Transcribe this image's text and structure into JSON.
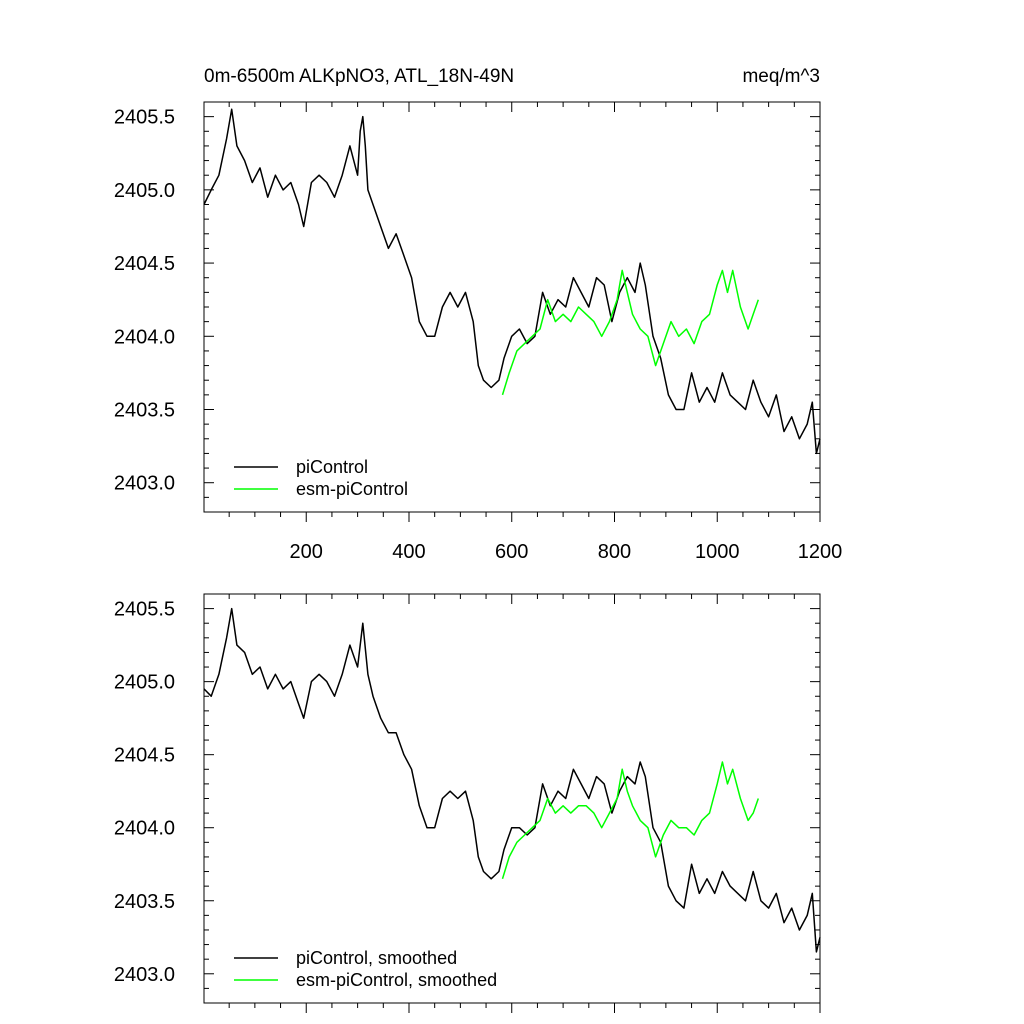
{
  "chart_data": [
    {
      "type": "line",
      "title": "0m-6500m ALKpNO3, ATL_18N-49N",
      "units": "meq/m^3",
      "xlim": [
        1,
        1200
      ],
      "ylim": [
        2402.8,
        2405.6
      ],
      "x_ticks": [
        200,
        400,
        600,
        800,
        1000,
        1200
      ],
      "y_ticks": [
        2403.0,
        2403.5,
        2404.0,
        2404.5,
        2405.0,
        2405.5
      ],
      "grid": false,
      "legend": "bottom-left",
      "series": [
        {
          "name": "piControl",
          "color": "#000000",
          "x": [
            1,
            15,
            30,
            45,
            55,
            65,
            80,
            95,
            110,
            125,
            140,
            155,
            170,
            185,
            195,
            210,
            225,
            240,
            255,
            270,
            285,
            300,
            305,
            310,
            315,
            320,
            330,
            345,
            360,
            375,
            390,
            405,
            420,
            435,
            450,
            465,
            480,
            495,
            510,
            525,
            535,
            545,
            560,
            575,
            585,
            600,
            615,
            630,
            645,
            660,
            675,
            690,
            705,
            720,
            735,
            750,
            765,
            780,
            795,
            810,
            825,
            840,
            850,
            860,
            875,
            890,
            905,
            920,
            935,
            950,
            965,
            980,
            995,
            1010,
            1025,
            1040,
            1055,
            1070,
            1085,
            1100,
            1115,
            1130,
            1145,
            1160,
            1175,
            1185,
            1193,
            1200
          ],
          "y": [
            2404.9,
            2405.0,
            2405.1,
            2405.35,
            2405.55,
            2405.3,
            2405.2,
            2405.05,
            2405.15,
            2404.95,
            2405.1,
            2405.0,
            2405.05,
            2404.9,
            2404.75,
            2405.05,
            2405.1,
            2405.05,
            2404.95,
            2405.1,
            2405.3,
            2405.1,
            2405.4,
            2405.5,
            2405.3,
            2405.0,
            2404.9,
            2404.75,
            2404.6,
            2404.7,
            2404.55,
            2404.4,
            2404.1,
            2404.0,
            2404.0,
            2404.2,
            2404.3,
            2404.2,
            2404.3,
            2404.1,
            2403.8,
            2403.7,
            2403.65,
            2403.7,
            2403.85,
            2404.0,
            2404.05,
            2403.95,
            2404.0,
            2404.3,
            2404.15,
            2404.25,
            2404.2,
            2404.4,
            2404.3,
            2404.2,
            2404.4,
            2404.35,
            2404.1,
            2404.3,
            2404.4,
            2404.3,
            2404.5,
            2404.35,
            2404.0,
            2403.85,
            2403.6,
            2403.5,
            2403.5,
            2403.75,
            2403.55,
            2403.65,
            2403.55,
            2403.75,
            2403.6,
            2403.55,
            2403.5,
            2403.7,
            2403.55,
            2403.45,
            2403.6,
            2403.35,
            2403.45,
            2403.3,
            2403.4,
            2403.55,
            2403.2,
            2403.3
          ]
        },
        {
          "name": "esm-piControl",
          "color": "#00ff00",
          "x": [
            582,
            595,
            610,
            625,
            640,
            655,
            670,
            685,
            700,
            715,
            730,
            745,
            760,
            775,
            790,
            805,
            815,
            825,
            835,
            850,
            865,
            880,
            895,
            910,
            925,
            940,
            955,
            970,
            985,
            1000,
            1010,
            1020,
            1030,
            1045,
            1060,
            1070,
            1080
          ],
          "y": [
            2403.6,
            2403.75,
            2403.9,
            2403.95,
            2404.0,
            2404.05,
            2404.25,
            2404.1,
            2404.15,
            2404.1,
            2404.2,
            2404.15,
            2404.1,
            2404.0,
            2404.1,
            2404.25,
            2404.45,
            2404.3,
            2404.15,
            2404.05,
            2404.0,
            2403.8,
            2403.95,
            2404.1,
            2404.0,
            2404.05,
            2403.95,
            2404.1,
            2404.15,
            2404.35,
            2404.45,
            2404.3,
            2404.45,
            2404.2,
            2404.05,
            2404.15,
            2404.25
          ]
        }
      ]
    },
    {
      "type": "line",
      "title": "",
      "xlim": [
        1,
        1200
      ],
      "ylim": [
        2402.8,
        2405.6
      ],
      "y_ticks": [
        2403.0,
        2403.5,
        2404.0,
        2404.5,
        2405.0,
        2405.5
      ],
      "grid": false,
      "legend": "bottom-left",
      "series": [
        {
          "name": "piControl, smoothed",
          "color": "#000000",
          "x": [
            1,
            15,
            30,
            45,
            55,
            65,
            80,
            95,
            110,
            125,
            140,
            155,
            170,
            185,
            195,
            210,
            225,
            240,
            255,
            270,
            285,
            300,
            310,
            320,
            330,
            345,
            360,
            375,
            390,
            405,
            420,
            435,
            450,
            465,
            480,
            495,
            510,
            525,
            535,
            545,
            560,
            575,
            585,
            600,
            615,
            630,
            645,
            660,
            675,
            690,
            705,
            720,
            735,
            750,
            765,
            780,
            795,
            810,
            825,
            840,
            850,
            860,
            875,
            890,
            905,
            920,
            935,
            950,
            965,
            980,
            995,
            1010,
            1025,
            1040,
            1055,
            1070,
            1085,
            1100,
            1115,
            1130,
            1145,
            1160,
            1175,
            1185,
            1193,
            1200
          ],
          "y": [
            2404.95,
            2404.9,
            2405.05,
            2405.3,
            2405.5,
            2405.25,
            2405.2,
            2405.05,
            2405.1,
            2404.95,
            2405.05,
            2404.95,
            2405.0,
            2404.85,
            2404.75,
            2405.0,
            2405.05,
            2405.0,
            2404.9,
            2405.05,
            2405.25,
            2405.1,
            2405.4,
            2405.05,
            2404.9,
            2404.75,
            2404.65,
            2404.65,
            2404.5,
            2404.4,
            2404.15,
            2404.0,
            2404.0,
            2404.2,
            2404.25,
            2404.2,
            2404.25,
            2404.05,
            2403.8,
            2403.7,
            2403.65,
            2403.7,
            2403.85,
            2404.0,
            2404.0,
            2403.95,
            2404.0,
            2404.3,
            2404.15,
            2404.25,
            2404.2,
            2404.4,
            2404.3,
            2404.2,
            2404.35,
            2404.3,
            2404.1,
            2404.25,
            2404.35,
            2404.3,
            2404.45,
            2404.35,
            2404.0,
            2403.9,
            2403.6,
            2403.5,
            2403.45,
            2403.75,
            2403.55,
            2403.65,
            2403.55,
            2403.7,
            2403.6,
            2403.55,
            2403.5,
            2403.7,
            2403.5,
            2403.45,
            2403.55,
            2403.35,
            2403.45,
            2403.3,
            2403.4,
            2403.55,
            2403.15,
            2403.25
          ]
        },
        {
          "name": "esm-piControl, smoothed",
          "color": "#00ff00",
          "x": [
            582,
            595,
            610,
            625,
            640,
            655,
            670,
            685,
            700,
            715,
            730,
            745,
            760,
            775,
            790,
            805,
            815,
            825,
            835,
            850,
            865,
            880,
            895,
            910,
            925,
            940,
            955,
            970,
            985,
            1000,
            1010,
            1020,
            1030,
            1045,
            1060,
            1070,
            1080
          ],
          "y": [
            2403.65,
            2403.8,
            2403.9,
            2403.95,
            2404.0,
            2404.05,
            2404.2,
            2404.1,
            2404.15,
            2404.1,
            2404.15,
            2404.15,
            2404.1,
            2404.0,
            2404.1,
            2404.2,
            2404.4,
            2404.25,
            2404.15,
            2404.05,
            2404.0,
            2403.8,
            2403.95,
            2404.05,
            2404.0,
            2404.0,
            2403.95,
            2404.05,
            2404.1,
            2404.3,
            2404.45,
            2404.3,
            2404.4,
            2404.2,
            2404.05,
            2404.1,
            2404.2
          ]
        }
      ]
    }
  ]
}
